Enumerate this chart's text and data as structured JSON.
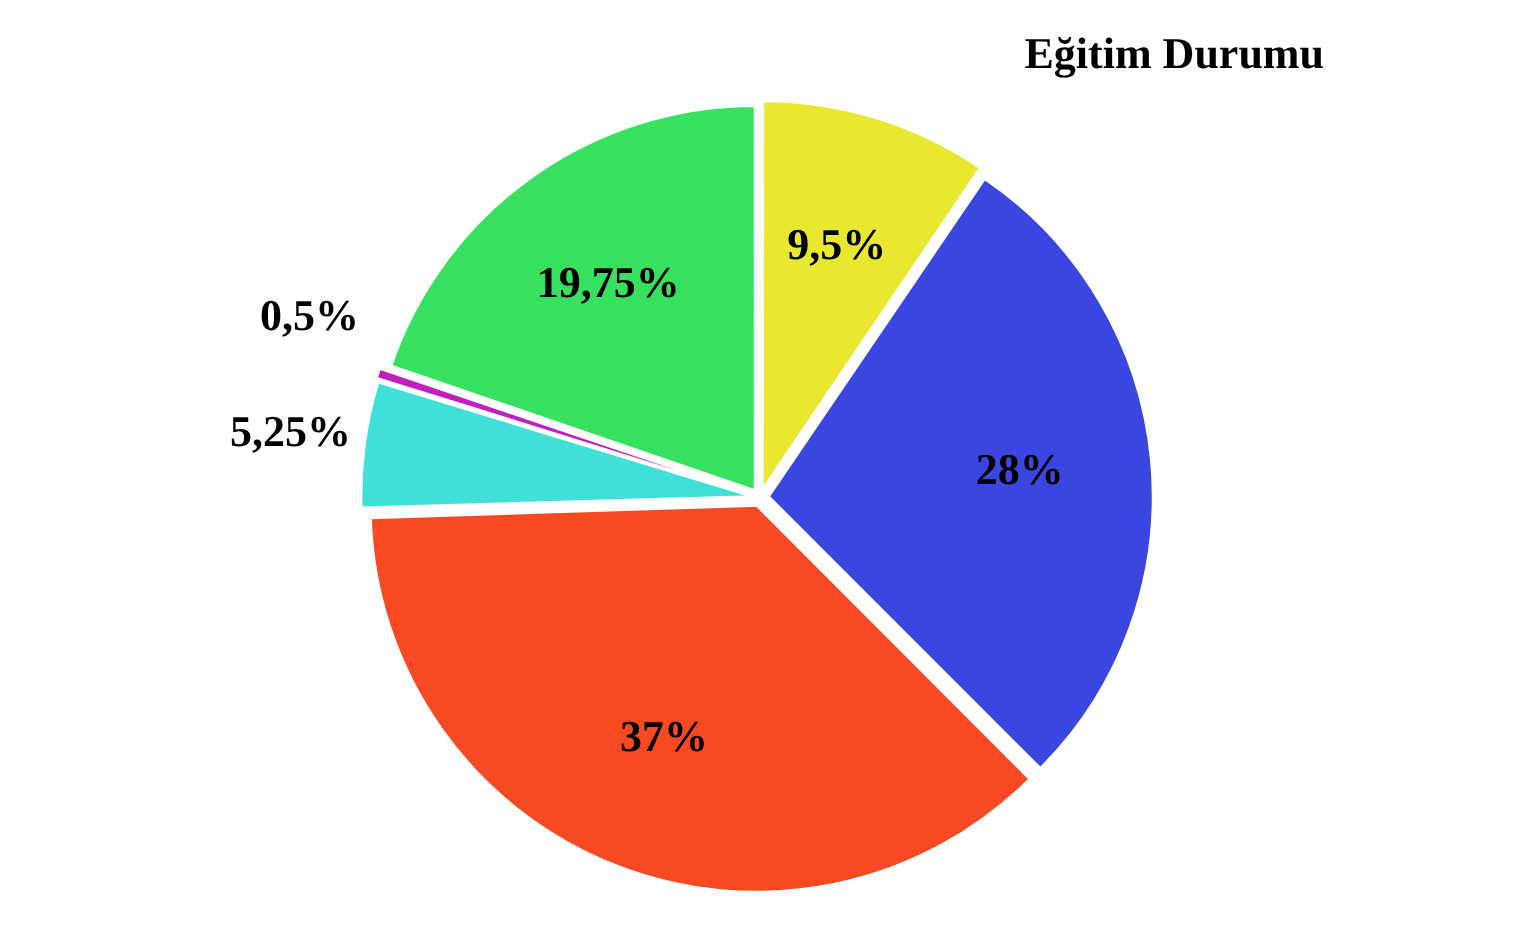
{
  "chart_data": {
    "type": "pie",
    "title": "Eğitim Durumu",
    "categories": [
      null,
      null,
      null,
      null,
      null,
      null
    ],
    "values": [
      9.5,
      28,
      37,
      5.25,
      0.5,
      19.75
    ],
    "colors": [
      "#e8e830",
      "#3a46e0",
      "#f84a22",
      "#40e0d8",
      "#c020c0",
      "#38e060"
    ],
    "value_labels": [
      "9,5%",
      "28%",
      "37%",
      "5,25%",
      "0,5%",
      "19,75%"
    ],
    "legend": false
  }
}
